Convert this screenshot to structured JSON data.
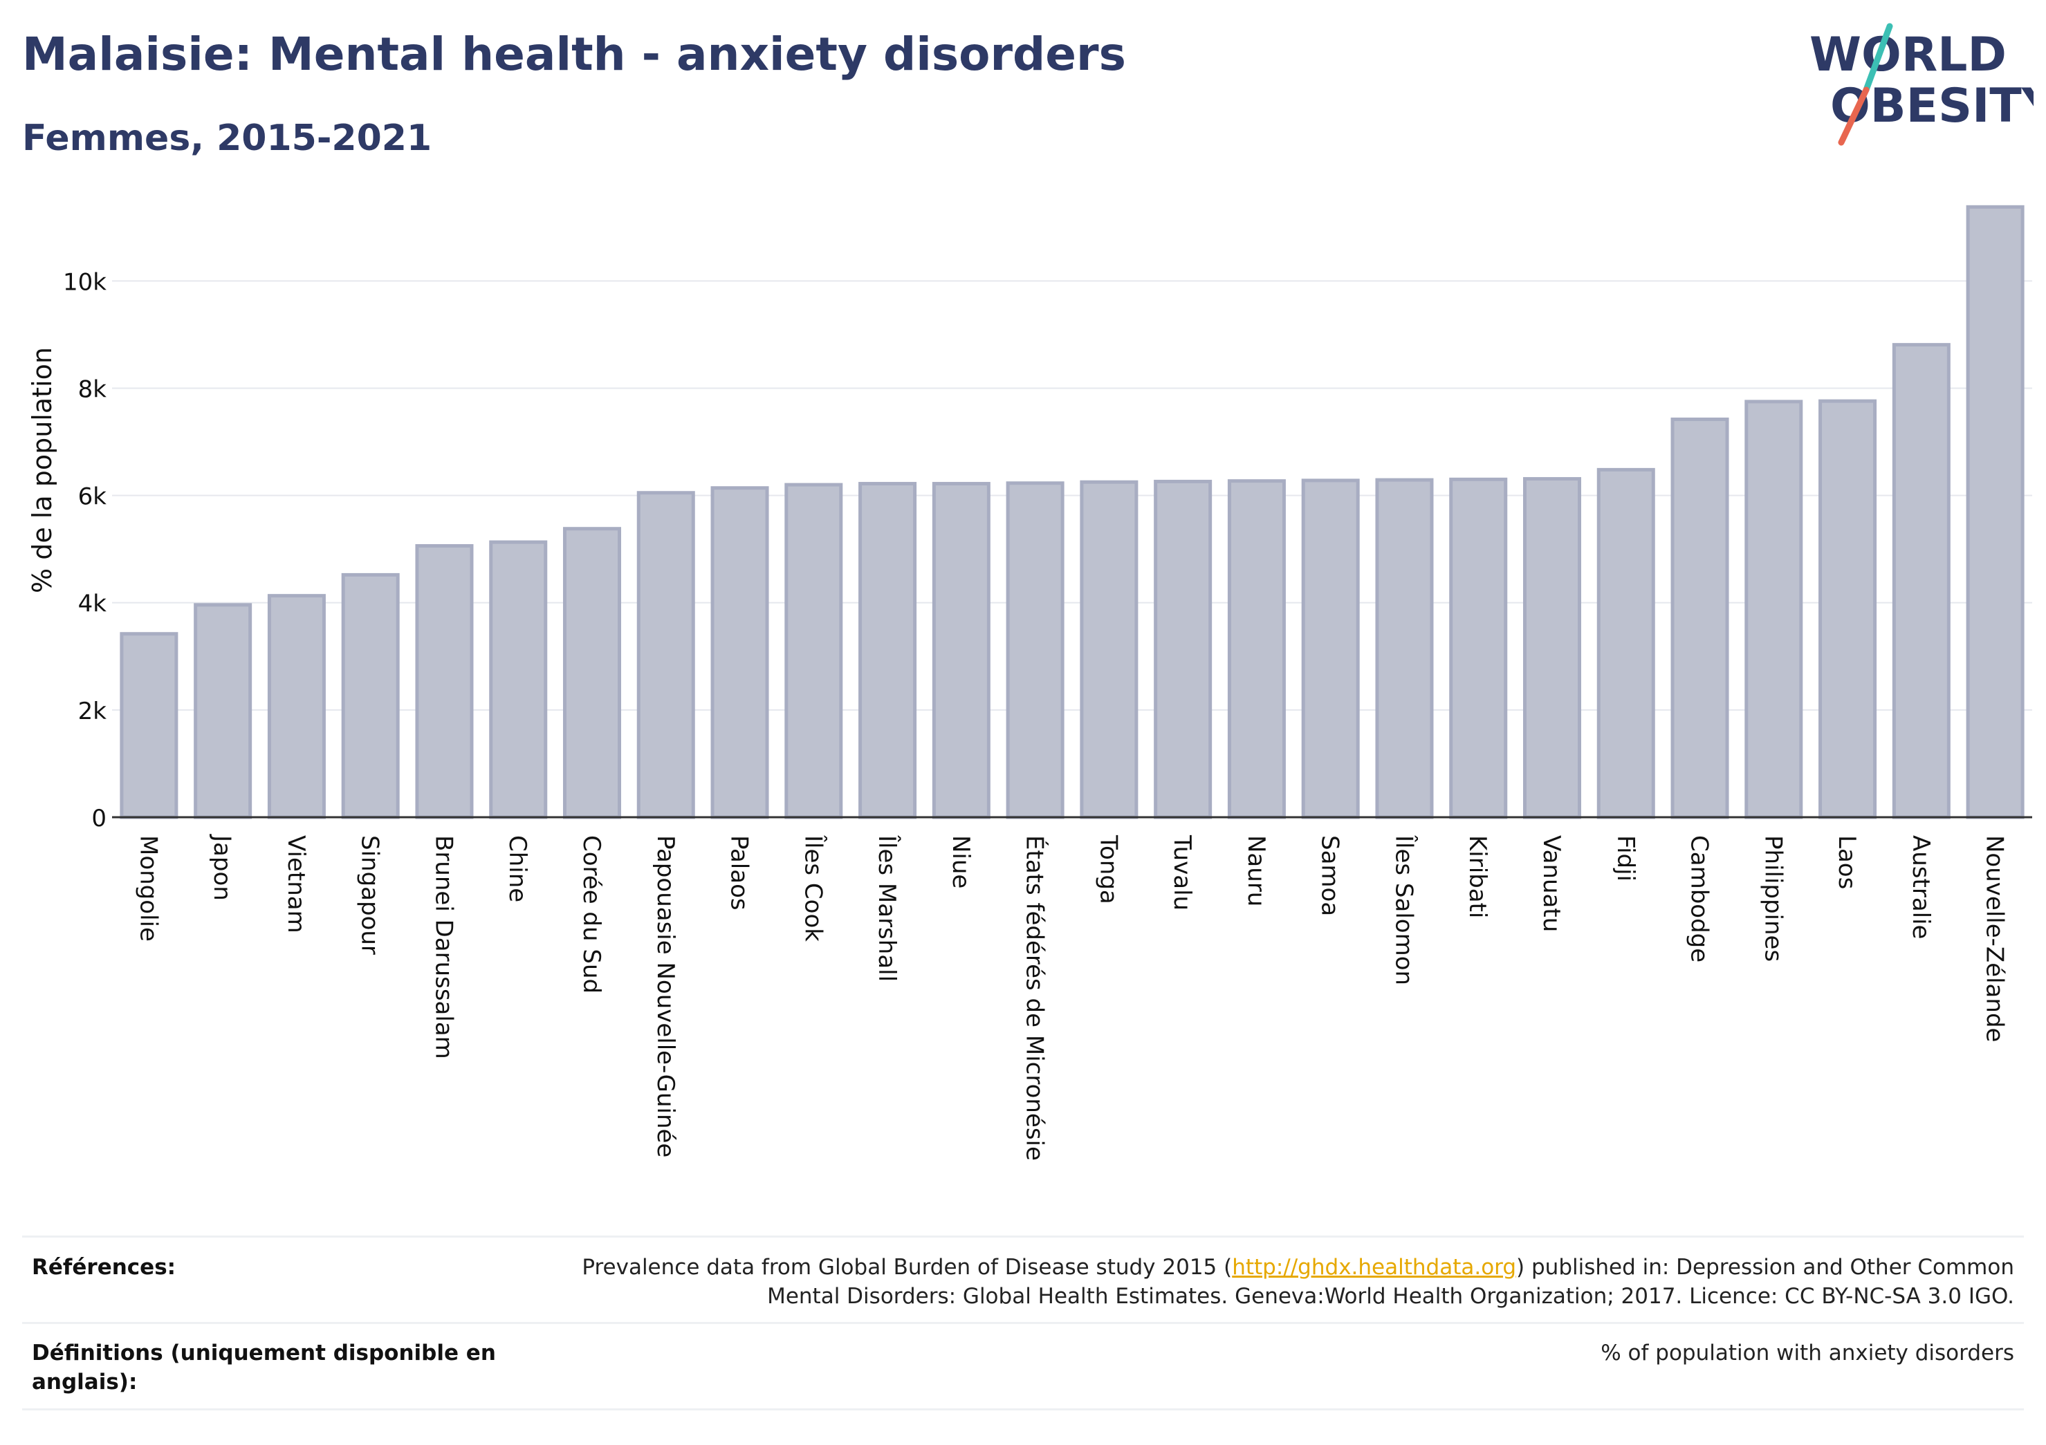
{
  "header": {
    "title": "Malaisie: Mental health - anxiety disorders",
    "subtitle": "Femmes, 2015-2021"
  },
  "logo": {
    "line1": "WORLD",
    "line2": "OBESITY",
    "colors": {
      "text": "#2e3a66",
      "slash_top": "#3cbfb4",
      "slash_bottom": "#e8664f"
    }
  },
  "chart_data": {
    "type": "bar",
    "ylabel": "% de la population",
    "ylim": [
      0,
      11500
    ],
    "yticks": [
      0,
      2000,
      4000,
      6000,
      8000,
      10000
    ],
    "ytick_labels": [
      "0",
      "2k",
      "4k",
      "6k",
      "8k",
      "10k"
    ],
    "categories": [
      "Mongolie",
      "Japon",
      "Vietnam",
      "Singapour",
      "Brunei Darussalam",
      "Chine",
      "Corée du Sud",
      "Papouasie Nouvelle-Guinée",
      "Palaos",
      "Îles Cook",
      "Îles Marshall",
      "Niue",
      "États fédérés de Micronésie",
      "Tonga",
      "Tuvalu",
      "Nauru",
      "Samoa",
      "Îles Salomon",
      "Kiribati",
      "Vanuatu",
      "Fidji",
      "Cambodge",
      "Philippines",
      "Laos",
      "Australie",
      "Nouvelle-Zélande"
    ],
    "values": [
      3420,
      3960,
      4130,
      4520,
      5060,
      5130,
      5380,
      6050,
      6140,
      6200,
      6220,
      6220,
      6230,
      6250,
      6260,
      6270,
      6280,
      6290,
      6300,
      6310,
      6480,
      7420,
      7750,
      7760,
      8810,
      11380
    ],
    "bar_fill": "#bdc1cf",
    "bar_stroke": "#a8adc2",
    "grid": true
  },
  "footer": {
    "references_label": "Références:",
    "references_line1_pre": "Prevalence data from Global Burden of Disease study 2015 (",
    "references_link": "http://ghdx.healthdata.org",
    "references_line1_post": ") published in: Depression and Other Common",
    "references_line2": "Mental Disorders: Global Health Estimates. Geneva:World Health Organization; 2017. Licence: CC BY-NC-SA 3.0 IGO.",
    "definitions_label": "Définitions (uniquement disponible en anglais):",
    "definitions_text": "% of population with anxiety disorders"
  }
}
